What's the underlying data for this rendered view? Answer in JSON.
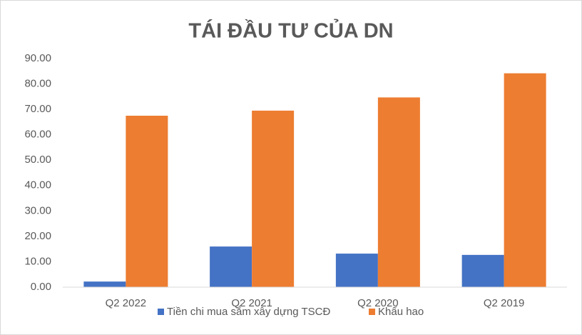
{
  "chart_data": {
    "type": "bar",
    "title": "TÁI ĐẦU TƯ CỦA DN",
    "categories": [
      "Q2 2022",
      "Q2 2021",
      "Q2 2020",
      "Q2 2019"
    ],
    "series": [
      {
        "name": "Tiền chi mua sắm xây dựng TSCĐ",
        "color": "#4472c4",
        "values": [
          2.2,
          16,
          13.2,
          12.7
        ]
      },
      {
        "name": "Khấu hao",
        "color": "#ed7d31",
        "values": [
          67.5,
          69.5,
          74.7,
          84.2
        ]
      }
    ],
    "ylim": [
      0,
      90
    ],
    "yticks": [
      {
        "value": 0,
        "label": "0.00"
      },
      {
        "value": 10,
        "label": "10.00"
      },
      {
        "value": 20,
        "label": "20.00"
      },
      {
        "value": 30,
        "label": "30.00"
      },
      {
        "value": 40,
        "label": "40.00"
      },
      {
        "value": 50,
        "label": "50.00"
      },
      {
        "value": 60,
        "label": "60.00"
      },
      {
        "value": 70,
        "label": "70.00"
      },
      {
        "value": 80,
        "label": "80.00"
      },
      {
        "value": 90,
        "label": "90.00"
      }
    ],
    "grid": false,
    "legend": "bottom"
  }
}
